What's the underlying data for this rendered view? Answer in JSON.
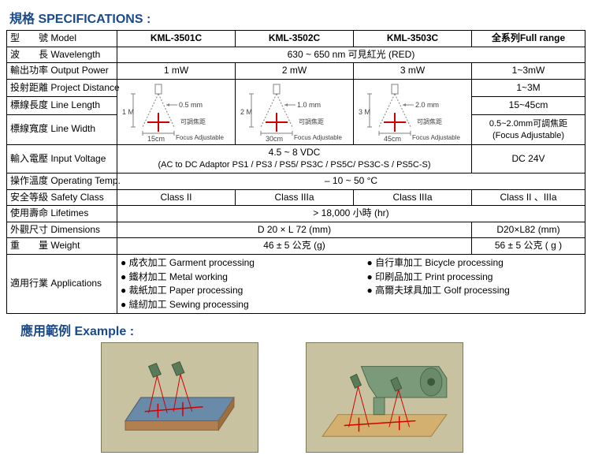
{
  "title": "規格 SPECIFICATIONS :",
  "header": {
    "model_label": "型　　號 Model",
    "m1": "KML-3501C",
    "m2": "KML-3502C",
    "m3": "KML-3503C",
    "full": "全系列Full range"
  },
  "rows": {
    "wavelength": {
      "label": "波　　長 Wavelength",
      "value": "630 ~ 650 nm 可見紅光 (RED)"
    },
    "output_power": {
      "label": "輸出功率 Output Power",
      "v1": "1 mW",
      "v2": "2 mW",
      "v3": "3 mW",
      "full": "1~3mW"
    },
    "project_distance": {
      "label": "投射距離 Project Distance",
      "full": "1~3M"
    },
    "line_length": {
      "label": "標線長度 Line Length",
      "full": "15~45cm"
    },
    "line_width": {
      "label": "標線寬度 Line Width",
      "full_a": "0.5~2.0mm可調焦距",
      "full_b": "(Focus Adjustable)"
    },
    "input_voltage": {
      "label": "輸入電壓 Input Voltage",
      "main": "4.5 ~ 8 VDC",
      "sub": "(AC to DC Adaptor PS1 / PS3 / PS5/ PS3C / PS5C/ PS3C-S / PS5C-S)",
      "full": "DC 24V"
    },
    "op_temp": {
      "label": "操作溫度 Operating Temp.",
      "value": "– 10 ~ 50 °C"
    },
    "safety": {
      "label": "安全等級 Safety Class",
      "v1": "Class II",
      "v2": "Class IIIa",
      "v3": "Class IIIa",
      "full": "Class II 、IIIa"
    },
    "lifetimes": {
      "label": "使用壽命 Lifetimes",
      "value": "> 18,000 小時 (hr)"
    },
    "dimensions": {
      "label": "外觀尺寸 Dimensions",
      "main": "D 20 × L 72 (mm)",
      "full": "D20×L82 (mm)"
    },
    "weight": {
      "label": "重　　量 Weight",
      "main": "46 ± 5 公克 (g)",
      "full": "56 ± 5 公克 ( g )"
    },
    "applications": {
      "label": "適用行業 Applications",
      "a1": "成衣加工  Garment processing",
      "a2": "鐵材加工  Metal working",
      "a3": "裁紙加工  Paper processing",
      "a4": "縫紉加工  Sewing processing",
      "b1": "自行車加工  Bicycle processing",
      "b2": "印刷品加工  Print processing",
      "b3": "高爾夫球具加工  Golf processing"
    }
  },
  "diagrams": {
    "d1": {
      "height": "1 M",
      "width": "0.5 mm",
      "base": "15cm",
      "focus": "可調焦距",
      "focus_en": "Focus Adjustable"
    },
    "d2": {
      "height": "2 M",
      "width": "1.0 mm",
      "base": "30cm",
      "focus": "可調焦距",
      "focus_en": "Focus Adjustable"
    },
    "d3": {
      "height": "3 M",
      "width": "2.0 mm",
      "base": "45cm",
      "focus": "可調焦距",
      "focus_en": "Focus Adjustable"
    },
    "stroke": "#808080",
    "cross": "#d00000",
    "text": "#404040"
  },
  "example_title": "應用範例 Example :",
  "example_colors": {
    "bg": "#c9c2a0",
    "table": "#6a8aaa",
    "wood": "#d4b070",
    "machine": "#7a9a7a",
    "laser_body": "#5a7a5a",
    "beam": "#d00000"
  }
}
